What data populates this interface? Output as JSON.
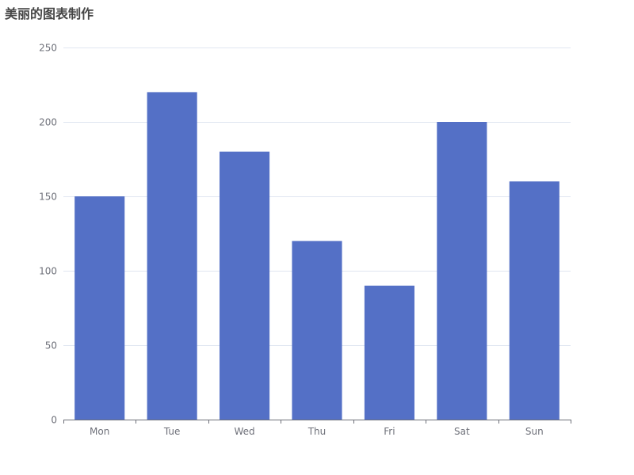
{
  "chart_data": {
    "type": "bar",
    "title": "美丽的图表制作",
    "categories": [
      "Mon",
      "Tue",
      "Wed",
      "Thu",
      "Fri",
      "Sat",
      "Sun"
    ],
    "values": [
      150,
      220,
      180,
      120,
      90,
      200,
      160
    ],
    "ylim": [
      0,
      250
    ],
    "yticks": [
      0,
      50,
      100,
      150,
      200,
      250
    ],
    "grid": true,
    "bar_color": "#5470c6",
    "xlabel": "",
    "ylabel": ""
  }
}
